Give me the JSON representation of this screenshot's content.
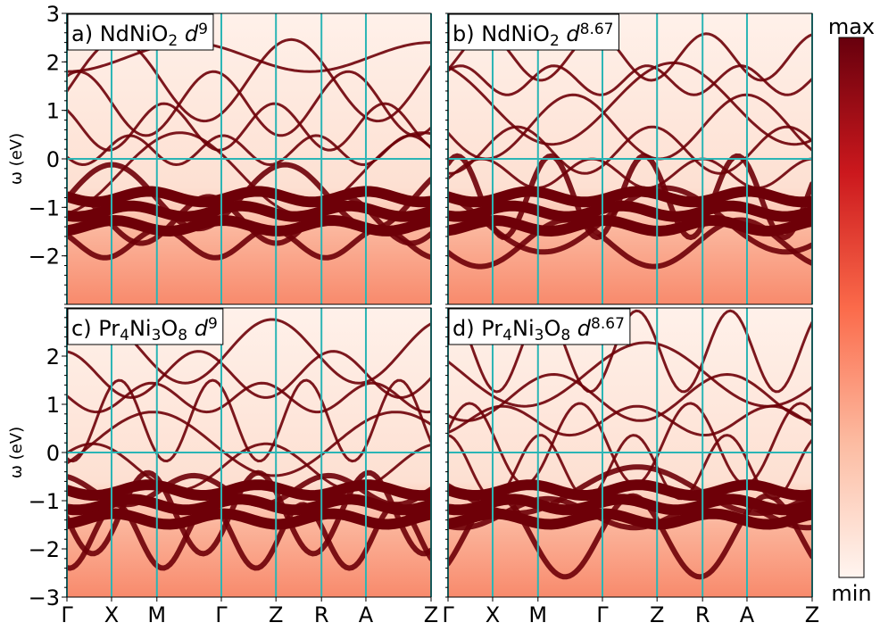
{
  "chart_data": [
    {
      "type": "heatmap",
      "title_parts": [
        "a) NdNiO",
        "2",
        " d",
        "9"
      ],
      "ylabel": "ω (eV)",
      "xlim": [
        0,
        1
      ],
      "ylim": [
        -3,
        3
      ],
      "kpoints": [
        0,
        0.1225,
        0.247,
        0.424,
        0.574,
        0.699,
        0.821,
        1
      ],
      "yticks": [
        {
          "value": -2,
          "label": "−2"
        },
        {
          "value": -1,
          "label": "−1"
        },
        0,
        1,
        2,
        3
      ],
      "fermi_level": 0
    },
    {
      "type": "heatmap",
      "title_parts": [
        "b) NdNiO",
        "2",
        " d",
        "8.67"
      ],
      "xlim": [
        0,
        1
      ],
      "ylim": [
        -3,
        3
      ],
      "kpoints": [
        0,
        0.1225,
        0.247,
        0.424,
        0.574,
        0.699,
        0.821,
        1
      ],
      "fermi_level": 0
    },
    {
      "type": "heatmap",
      "title_parts": [
        "c) Pr",
        "4",
        "Ni",
        "3",
        "O",
        "8",
        " d",
        "9"
      ],
      "ylabel": "ω (eV)",
      "xlim": [
        0,
        1
      ],
      "ylim": [
        -3,
        3
      ],
      "kpoints": [
        0,
        0.1225,
        0.247,
        0.424,
        0.574,
        0.699,
        0.821,
        1
      ],
      "yticks": [
        {
          "value": -3,
          "label": "−3"
        },
        {
          "value": -2,
          "label": "−2"
        },
        {
          "value": -1,
          "label": "−1"
        },
        0,
        1,
        2
      ],
      "xticks": [
        {
          "value": 0,
          "label": "Γ"
        },
        {
          "value": 0.1225,
          "label": "X"
        },
        {
          "value": 0.247,
          "label": "M"
        },
        {
          "value": 0.424,
          "label": "Γ"
        },
        {
          "value": 0.574,
          "label": "Z"
        },
        {
          "value": 0.699,
          "label": "R"
        },
        {
          "value": 0.821,
          "label": "A"
        },
        {
          "value": 1,
          "label": "Z"
        }
      ],
      "fermi_level": 0
    },
    {
      "type": "heatmap",
      "title_parts": [
        "d) Pr",
        "4",
        "Ni",
        "3",
        "O",
        "8",
        " d",
        "8.67"
      ],
      "xlim": [
        0,
        1
      ],
      "ylim": [
        -3,
        3
      ],
      "kpoints": [
        0,
        0.1225,
        0.247,
        0.424,
        0.574,
        0.699,
        0.821,
        1
      ],
      "xticks": [
        {
          "value": 0,
          "label": "Γ"
        },
        {
          "value": 0.1225,
          "label": "X"
        },
        {
          "value": 0.247,
          "label": "M"
        },
        {
          "value": 0.424,
          "label": "Γ"
        },
        {
          "value": 0.574,
          "label": "Z"
        },
        {
          "value": 0.699,
          "label": "R"
        },
        {
          "value": 0.821,
          "label": "A"
        },
        {
          "value": 1,
          "label": "Z"
        }
      ],
      "fermi_level": 0
    }
  ],
  "colorbar": {
    "max_label": "max",
    "min_label": "min"
  }
}
